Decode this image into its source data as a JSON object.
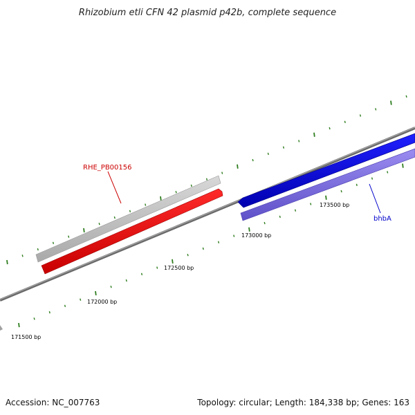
{
  "title": "Rhizobium etli CFN 42 plasmid p42b, complete sequence",
  "footer": {
    "accession": "Accession: NC_007763",
    "summary": "Topology: circular; Length: 184,338 bp; Genes: 163"
  },
  "scale": {
    "labels": [
      "171500 bp",
      "172000 bp",
      "172500 bp",
      "173000 bp",
      "173500 bp"
    ]
  },
  "genes": [
    {
      "name": "RHE_PB00156",
      "color": "#cc0000",
      "fill": "#ff0000",
      "strand": "forward"
    },
    {
      "name": "bhbA",
      "color": "#0000cc",
      "fill": "#0000ee",
      "strand": "reverse"
    }
  ],
  "colors": {
    "backbone": "#777777",
    "tick": "#2e7d1e",
    "cds_forward": "#c0c0c0",
    "cds_reverse": "#7b68ee"
  }
}
